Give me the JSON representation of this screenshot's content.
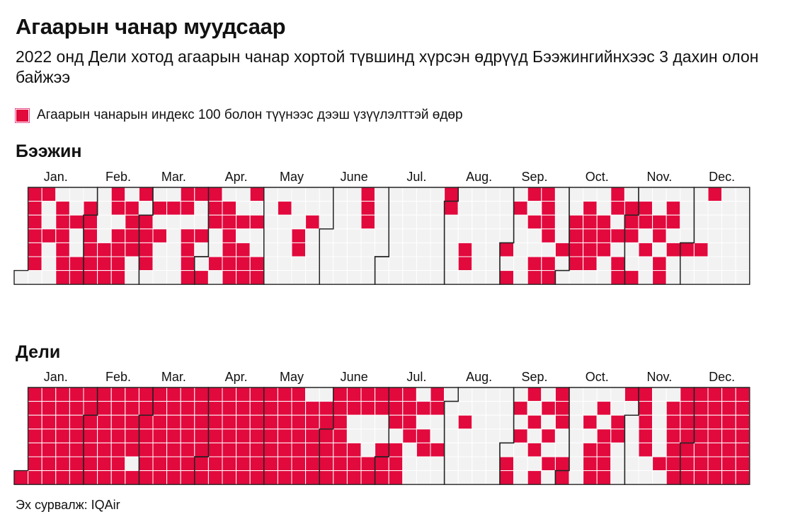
{
  "title": "Агаарын чанар муудсаар",
  "subtitle": "2022 онд Дели хотод агаарын чанар хортой түвшинд хүрсэн өдрүүд Бээжингийнхээс 3 дахин олон байжээ",
  "legend": {
    "label": "Агаарын чанарын индекс 100 болон түүнээс дээш үзүүлэлттэй өдөр",
    "color": "#e2093d"
  },
  "source": "Эх сурвалж: IQAir",
  "colors": {
    "bad": "#e2093d",
    "good": "#f2f2f2",
    "grid": "#ffffff",
    "border": "#222222"
  },
  "chart_data": [
    {
      "type": "heatmap",
      "title": "Бээжин",
      "year": 2022,
      "metric": "Агаарын чанарын индекс ≥ 100",
      "months": [
        "Jan.",
        "Feb.",
        "Mar.",
        "Apr.",
        "May",
        "June",
        "Jul.",
        "Aug.",
        "Sep.",
        "Oct.",
        "Nov.",
        "Dec."
      ],
      "rows": [
        "................................................................................................",
        "........................................................................................................................................................................................................................................................................................................................................................................................",
        "",
        "",
        "",
        "",
        ""
      ],
      "weeks": [
        "0000001",
        "0111110",
        "0110000",
        "0000000",
        "0011111",
        "0000000",
        "1000000",
        "0111111",
        "0000000",
        "0010000",
        "0000000",
        "1001111",
        "0110110",
        "1111011",
        "0110100",
        "1000011",
        "0001000",
        "0000000",
        "0001000",
        "0000000",
        "0000000",
        "0000000",
        "0000000",
        "0000000",
        "0000000",
        "0000000",
        "0000000",
        "0000000",
        "0000000",
        "0000000",
        "0000000",
        "0000000",
        "0000000",
        "0000000",
        "0000000",
        "0000000",
        "0000000",
        "0000000",
        "0000000",
        "0000000",
        "0000000",
        "0000000",
        "0000000",
        "0000000",
        "0000000",
        "0000000",
        "0000000",
        "0000000",
        "0000000",
        "0000000",
        "0000000",
        "0000000",
        "0000000"
      ],
      "marked_cells": [
        [
          3,
          0
        ],
        [
          0,
          1
        ],
        [
          1,
          1
        ],
        [
          2,
          1
        ],
        [
          3,
          1
        ],
        [
          4,
          1
        ],
        [
          5,
          1
        ],
        [
          0,
          2
        ],
        [
          3,
          2
        ],
        [
          1,
          3
        ],
        [
          2,
          3
        ],
        [
          3,
          3
        ],
        [
          4,
          3
        ],
        [
          5,
          3
        ],
        [
          6,
          3
        ],
        [
          2,
          4
        ],
        [
          5,
          4
        ],
        [
          6,
          4
        ],
        [
          1,
          5
        ],
        [
          2,
          5
        ],
        [
          3,
          5
        ],
        [
          4,
          5
        ],
        [
          5,
          5
        ],
        [
          6,
          5
        ],
        [
          4,
          6
        ],
        [
          5,
          6
        ],
        [
          6,
          6
        ],
        [
          0,
          7
        ],
        [
          1,
          7
        ],
        [
          3,
          7
        ],
        [
          4,
          7
        ],
        [
          5,
          7
        ],
        [
          6,
          7
        ],
        [
          1,
          8
        ],
        [
          2,
          8
        ],
        [
          3,
          8
        ],
        [
          4,
          8
        ],
        [
          0,
          9
        ],
        [
          2,
          9
        ],
        [
          3,
          9
        ],
        [
          4,
          9
        ],
        [
          5,
          9
        ],
        [
          1,
          10
        ],
        [
          3,
          10
        ],
        [
          1,
          11
        ],
        [
          0,
          12
        ],
        [
          1,
          12
        ],
        [
          3,
          12
        ],
        [
          4,
          12
        ],
        [
          5,
          12
        ],
        [
          6,
          12
        ],
        [
          0,
          13
        ],
        [
          3,
          13
        ],
        [
          6,
          13
        ],
        [
          0,
          14
        ],
        [
          1,
          14
        ],
        [
          2,
          14
        ],
        [
          5,
          14
        ],
        [
          1,
          15
        ],
        [
          2,
          15
        ],
        [
          3,
          15
        ],
        [
          4,
          15
        ],
        [
          5,
          15
        ],
        [
          6,
          15
        ],
        [
          2,
          16
        ],
        [
          4,
          16
        ],
        [
          5,
          16
        ],
        [
          6,
          16
        ],
        [
          0,
          17
        ],
        [
          2,
          17
        ],
        [
          5,
          17
        ],
        [
          6,
          17
        ],
        [
          1,
          19
        ],
        [
          3,
          20
        ],
        [
          4,
          20
        ],
        [
          2,
          21
        ],
        [
          0,
          25
        ],
        [
          1,
          25
        ],
        [
          2,
          25
        ],
        [
          0,
          31
        ],
        [
          1,
          31
        ],
        [
          4,
          32
        ],
        [
          5,
          32
        ],
        [
          4,
          35
        ],
        [
          6,
          35
        ],
        [
          1,
          36
        ],
        [
          0,
          37
        ],
        [
          2,
          37
        ],
        [
          5,
          37
        ],
        [
          6,
          37
        ],
        [
          0,
          38
        ],
        [
          1,
          38
        ],
        [
          2,
          38
        ],
        [
          3,
          38
        ],
        [
          5,
          38
        ],
        [
          6,
          38
        ],
        [
          4,
          39
        ],
        [
          2,
          40
        ],
        [
          3,
          40
        ],
        [
          4,
          40
        ],
        [
          5,
          40
        ],
        [
          1,
          41
        ],
        [
          2,
          41
        ],
        [
          3,
          41
        ],
        [
          4,
          41
        ],
        [
          5,
          41
        ],
        [
          2,
          42
        ],
        [
          3,
          42
        ],
        [
          4,
          42
        ],
        [
          0,
          43
        ],
        [
          1,
          43
        ],
        [
          3,
          43
        ],
        [
          5,
          43
        ],
        [
          6,
          43
        ],
        [
          1,
          44
        ],
        [
          2,
          44
        ],
        [
          3,
          44
        ],
        [
          6,
          44
        ],
        [
          1,
          45
        ],
        [
          2,
          45
        ],
        [
          4,
          45
        ],
        [
          2,
          46
        ],
        [
          3,
          46
        ],
        [
          5,
          46
        ],
        [
          6,
          46
        ],
        [
          1,
          47
        ],
        [
          2,
          47
        ],
        [
          4,
          47
        ],
        [
          4,
          48
        ],
        [
          4,
          49
        ],
        [
          0,
          50
        ]
      ]
    },
    {
      "type": "heatmap",
      "title": "Дели",
      "year": 2022,
      "metric": "Агаарын чанарын индекс ≥ 100",
      "months": [
        "Jan.",
        "Feb.",
        "Mar.",
        "Apr.",
        "May",
        "June",
        "Jul.",
        "Aug.",
        "Sep.",
        "Oct.",
        "Nov.",
        "Dec."
      ],
      "unmarked_cells": [
        [
          5,
          8
        ],
        [
          0,
          21
        ],
        [
          0,
          22
        ],
        [
          2,
          24
        ],
        [
          3,
          24
        ],
        [
          2,
          25
        ],
        [
          3,
          25
        ],
        [
          4,
          25
        ],
        [
          2,
          26
        ],
        [
          3,
          26
        ],
        [
          3,
          27
        ],
        [
          4,
          28
        ],
        [
          5,
          28
        ],
        [
          6,
          28
        ],
        [
          2,
          29
        ],
        [
          5,
          29
        ],
        [
          6,
          29
        ],
        [
          0,
          29
        ],
        [
          6,
          30
        ],
        [
          2,
          30
        ],
        [
          3,
          30
        ],
        [
          5,
          30
        ],
        [
          2,
          31
        ],
        [
          3,
          31
        ],
        [
          4,
          31
        ],
        [
          5,
          31
        ],
        [
          6,
          31
        ],
        [
          0,
          31
        ],
        [
          1,
          31
        ],
        [
          3,
          32
        ],
        [
          4,
          32
        ],
        [
          5,
          32
        ],
        [
          6,
          32
        ],
        [
          0,
          32
        ],
        [
          1,
          32
        ],
        [
          2,
          33
        ],
        [
          3,
          33
        ],
        [
          4,
          33
        ],
        [
          5,
          33
        ],
        [
          6,
          33
        ],
        [
          1,
          33
        ],
        [
          0,
          33
        ],
        [
          0,
          34
        ],
        [
          1,
          34
        ],
        [
          2,
          34
        ],
        [
          3,
          34
        ],
        [
          4,
          34
        ],
        [
          5,
          34
        ],
        [
          6,
          34
        ],
        [
          0,
          35
        ],
        [
          1,
          35
        ],
        [
          2,
          35
        ],
        [
          3,
          35
        ],
        [
          4,
          35
        ],
        [
          0,
          36
        ],
        [
          2,
          36
        ],
        [
          4,
          36
        ],
        [
          5,
          36
        ],
        [
          6,
          36
        ],
        [
          1,
          37
        ],
        [
          3,
          37
        ],
        [
          5,
          37
        ],
        [
          0,
          38
        ],
        [
          2,
          38
        ],
        [
          4,
          38
        ],
        [
          6,
          38
        ],
        [
          4,
          39
        ],
        [
          3,
          39
        ],
        [
          0,
          40
        ],
        [
          1,
          40
        ],
        [
          2,
          40
        ],
        [
          3,
          40
        ],
        [
          4,
          40
        ],
        [
          5,
          40
        ],
        [
          6,
          40
        ],
        [
          0,
          41
        ],
        [
          1,
          41
        ],
        [
          0,
          42
        ],
        [
          0,
          43
        ],
        [
          1,
          43
        ],
        [
          3,
          41
        ],
        [
          2,
          42
        ],
        [
          4,
          43
        ],
        [
          5,
          43
        ],
        [
          6,
          43
        ],
        [
          1,
          44
        ],
        [
          2,
          44
        ],
        [
          3,
          44
        ],
        [
          4,
          44
        ],
        [
          5,
          44
        ],
        [
          6,
          44
        ],
        [
          5,
          45
        ],
        [
          6,
          45
        ],
        [
          0,
          46
        ],
        [
          1,
          46
        ],
        [
          2,
          46
        ],
        [
          3,
          46
        ],
        [
          4,
          46
        ],
        [
          6,
          46
        ],
        [
          0,
          47
        ]
      ]
    }
  ]
}
